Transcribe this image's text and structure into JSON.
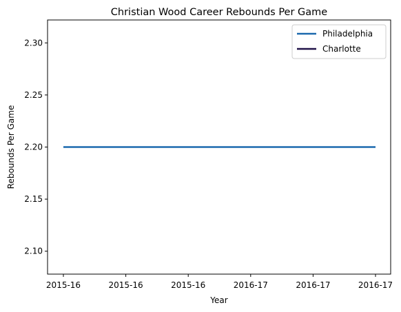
{
  "chart_data": {
    "type": "line",
    "title": "Christian Wood Career Rebounds Per Game",
    "xlabel": "Year",
    "ylabel": "Rebounds Per Game",
    "x_tick_labels": [
      "2015-16",
      "2015-16",
      "2015-16",
      "2016-17",
      "2016-17",
      "2016-17"
    ],
    "xlim": [
      0,
      5
    ],
    "ylim": [
      2.078,
      2.322
    ],
    "y_ticks": [
      2.1,
      2.15,
      2.2,
      2.25,
      2.3
    ],
    "grid": false,
    "legend_position": "top-right",
    "series": [
      {
        "name": "Philadelphia",
        "color": "#1a68ad",
        "x": [
          0,
          5
        ],
        "y": [
          2.2,
          2.2
        ]
      },
      {
        "name": "Charlotte",
        "color": "#1f1147",
        "x": [],
        "y": []
      }
    ]
  }
}
